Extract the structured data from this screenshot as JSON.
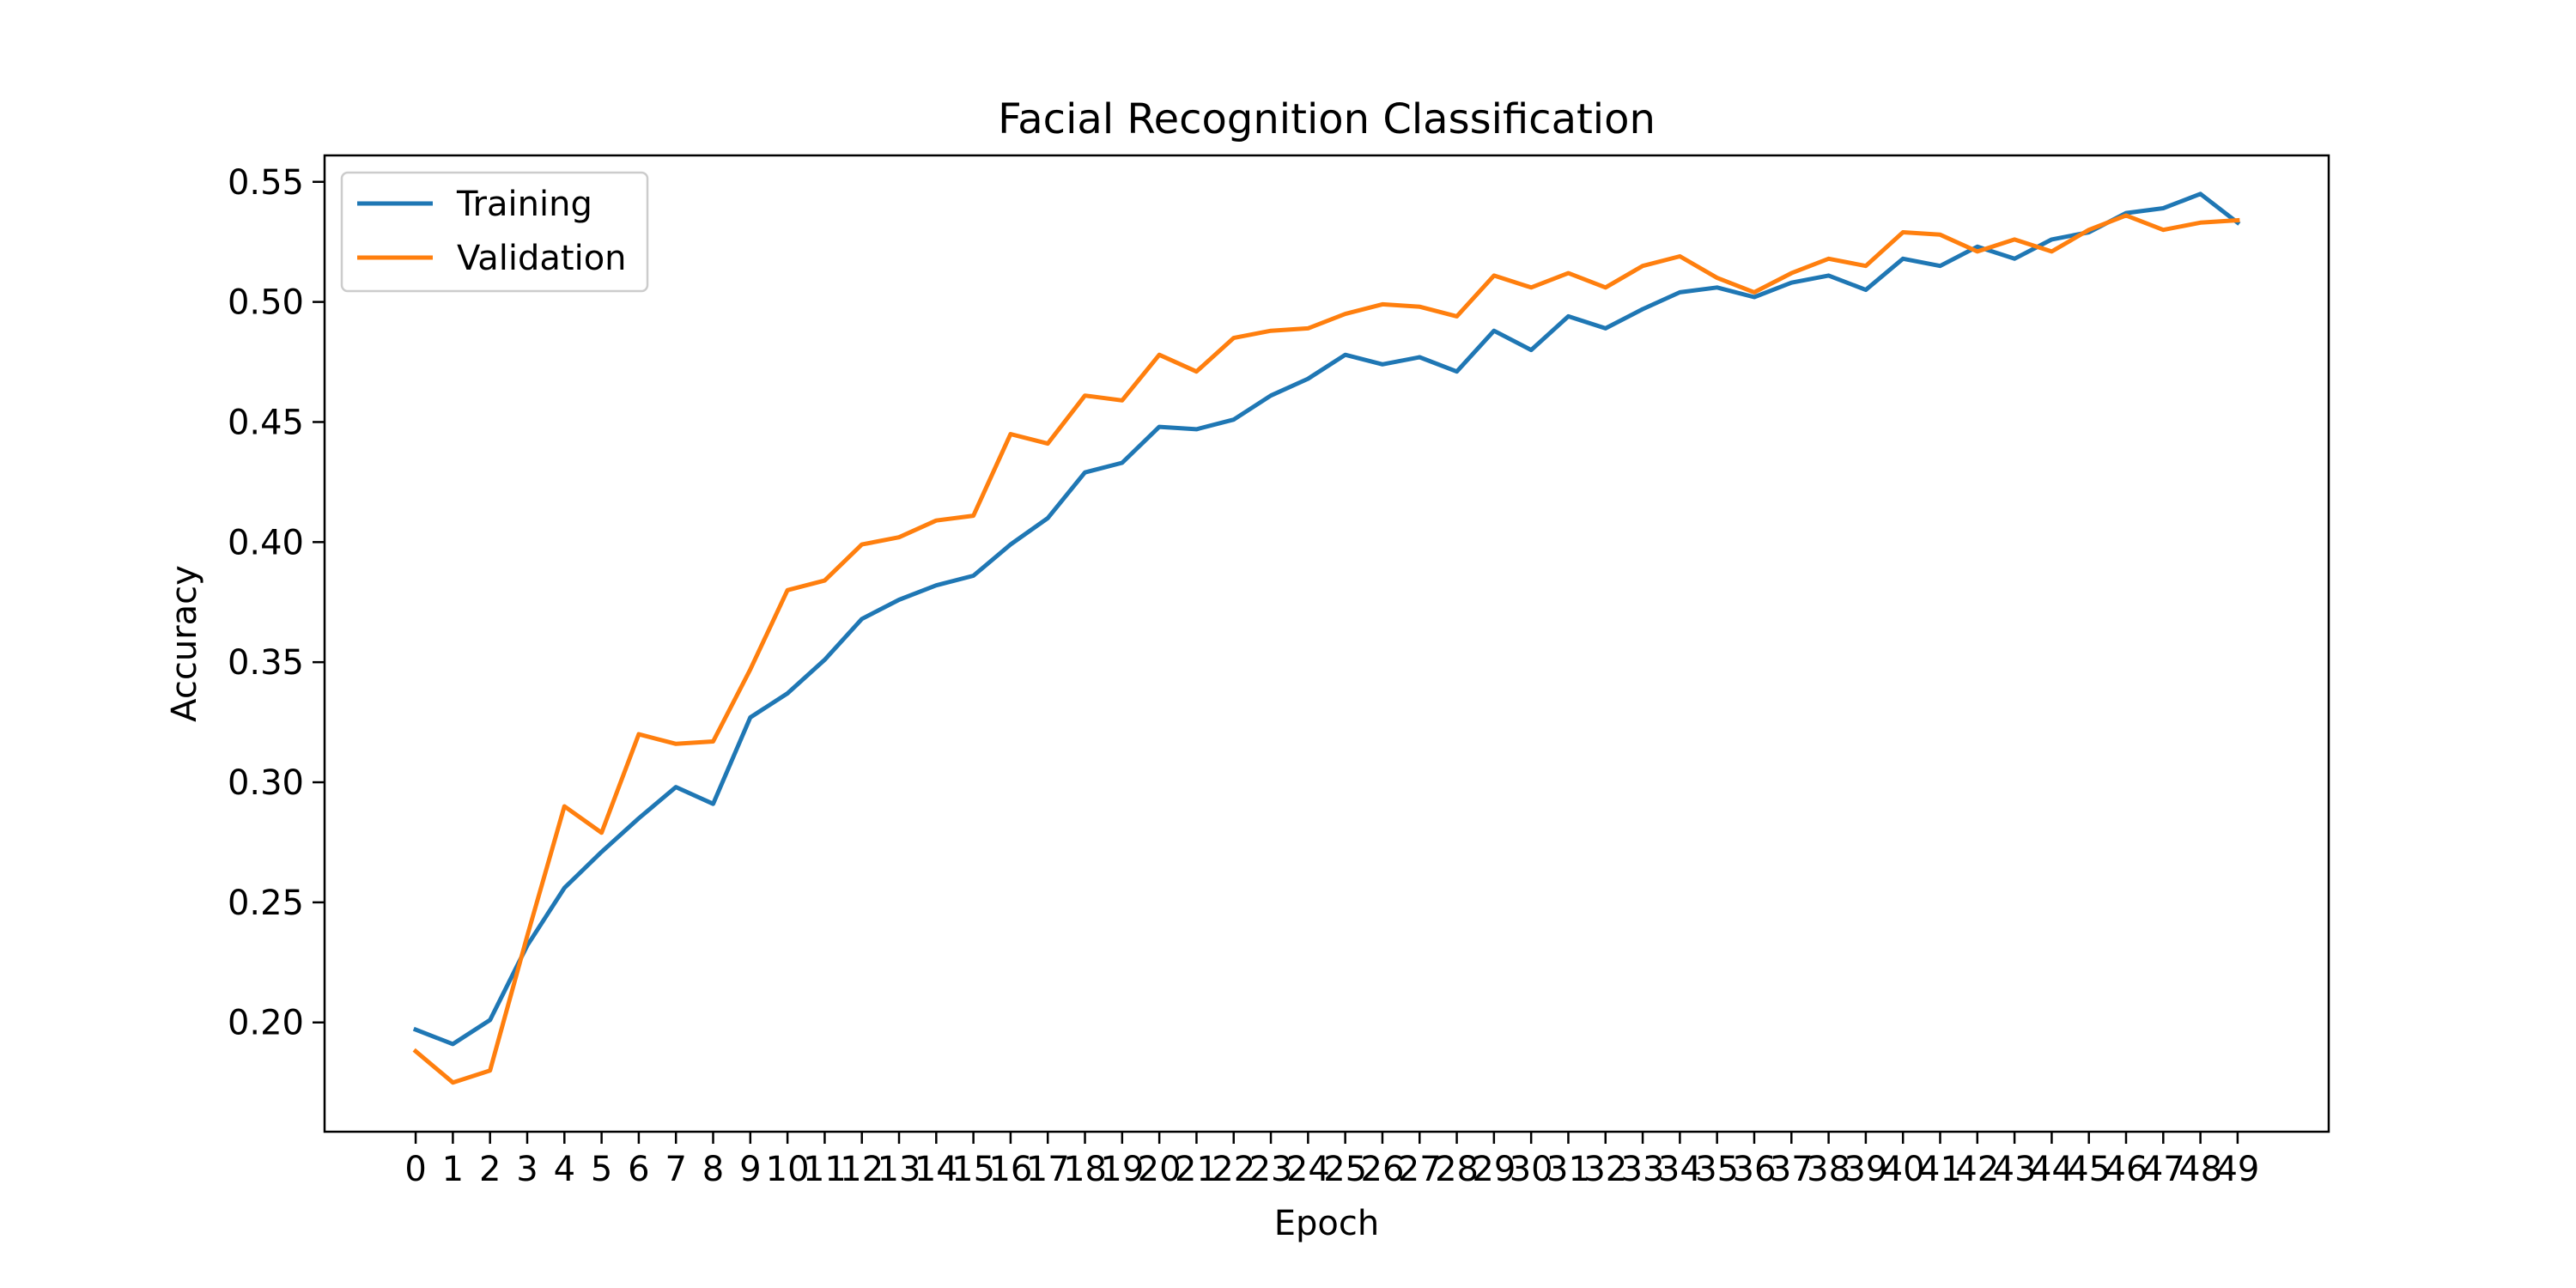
{
  "chart_data": {
    "type": "line",
    "title": "Facial Recognition Classification",
    "xlabel": "Epoch",
    "ylabel": "Accuracy",
    "x": [
      0,
      1,
      2,
      3,
      4,
      5,
      6,
      7,
      8,
      9,
      10,
      11,
      12,
      13,
      14,
      15,
      16,
      17,
      18,
      19,
      20,
      21,
      22,
      23,
      24,
      25,
      26,
      27,
      28,
      29,
      30,
      31,
      32,
      33,
      34,
      35,
      36,
      37,
      38,
      39,
      40,
      41,
      42,
      43,
      44,
      45,
      46,
      47,
      48,
      49
    ],
    "xlim": [
      -2.45,
      51.45
    ],
    "ylim": [
      0.1545,
      0.561
    ],
    "yticks": [
      0.2,
      0.25,
      0.3,
      0.35,
      0.4,
      0.45,
      0.5,
      0.55
    ],
    "ytick_labels": [
      "0.20",
      "0.25",
      "0.30",
      "0.35",
      "0.40",
      "0.45",
      "0.50",
      "0.55"
    ],
    "grid": false,
    "legend_position": "upper-left",
    "series": [
      {
        "name": "Training",
        "color": "#1f77b4",
        "values": [
          0.197,
          0.191,
          0.201,
          0.232,
          0.256,
          0.271,
          0.285,
          0.298,
          0.291,
          0.327,
          0.337,
          0.351,
          0.368,
          0.376,
          0.382,
          0.386,
          0.399,
          0.41,
          0.429,
          0.433,
          0.448,
          0.447,
          0.451,
          0.461,
          0.468,
          0.478,
          0.474,
          0.477,
          0.471,
          0.488,
          0.48,
          0.494,
          0.489,
          0.497,
          0.504,
          0.506,
          0.502,
          0.508,
          0.511,
          0.505,
          0.518,
          0.515,
          0.523,
          0.518,
          0.526,
          0.529,
          0.537,
          0.539,
          0.545,
          0.533
        ]
      },
      {
        "name": "Validation",
        "color": "#ff7f0e",
        "values": [
          0.188,
          0.175,
          0.18,
          0.236,
          0.29,
          0.279,
          0.32,
          0.316,
          0.317,
          0.347,
          0.38,
          0.384,
          0.399,
          0.402,
          0.409,
          0.411,
          0.445,
          0.441,
          0.461,
          0.459,
          0.478,
          0.471,
          0.485,
          0.488,
          0.489,
          0.495,
          0.499,
          0.498,
          0.494,
          0.511,
          0.506,
          0.512,
          0.506,
          0.515,
          0.519,
          0.51,
          0.504,
          0.512,
          0.518,
          0.515,
          0.529,
          0.528,
          0.521,
          0.526,
          0.521,
          0.53,
          0.536,
          0.53,
          0.533,
          0.534
        ]
      }
    ]
  }
}
